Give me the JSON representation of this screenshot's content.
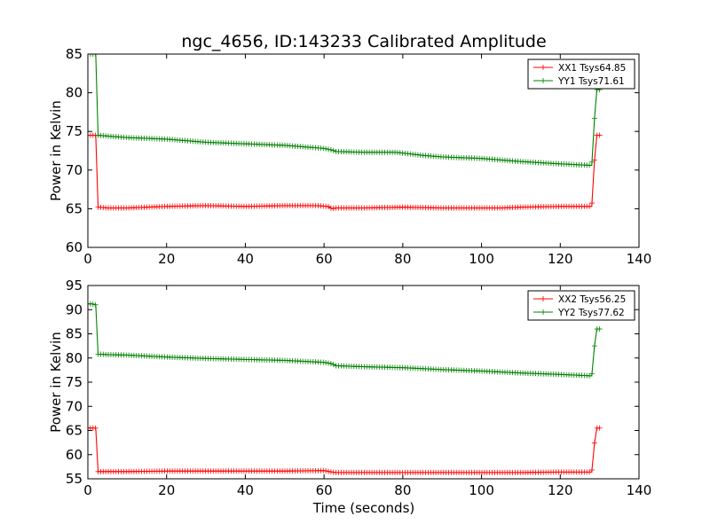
{
  "chart_data": {
    "type": "line",
    "title": "ngc_4656, ID:143233 Calibrated Amplitude",
    "xlabel": "Time (seconds)",
    "panels": [
      {
        "ylabel": "Power in Kelvin",
        "xlim": [
          0,
          140
        ],
        "ylim": [
          60,
          85
        ],
        "xticks": [
          0,
          20,
          40,
          60,
          80,
          100,
          120,
          140
        ],
        "yticks": [
          60,
          65,
          70,
          75,
          80,
          85
        ],
        "legend_position": "top-right",
        "series": [
          {
            "name": "XX1 Tsys64.85",
            "color": "#ff0000",
            "x": [
              0,
              1,
              2,
              2.6,
              5,
              10,
              20,
              30,
              40,
              50,
              58,
              61,
              62,
              63,
              70,
              80,
              90,
              100,
              105,
              110,
              120,
              128,
              128.7,
              129.3,
              130
            ],
            "y": [
              74.5,
              74.5,
              74.5,
              65.2,
              65.1,
              65.1,
              65.3,
              65.4,
              65.3,
              65.4,
              65.4,
              65.3,
              65.0,
              65.1,
              65.1,
              65.2,
              65.1,
              65.1,
              65.1,
              65.2,
              65.3,
              65.3,
              71.3,
              74.5,
              74.5
            ]
          },
          {
            "name": "YY1 Tsys71.61",
            "color": "#008000",
            "x": [
              0,
              1,
              2,
              2.6,
              5,
              10,
              20,
              30,
              40,
              50,
              55,
              60,
              62,
              63,
              70,
              78,
              80,
              85,
              90,
              100,
              110,
              120,
              128,
              128.7,
              129.3,
              130
            ],
            "y": [
              85,
              85,
              85,
              74.5,
              74.4,
              74.2,
              74.0,
              73.6,
              73.4,
              73.2,
              73.0,
              72.8,
              72.6,
              72.4,
              72.3,
              72.3,
              72.2,
              71.9,
              71.7,
              71.5,
              71.1,
              70.8,
              70.6,
              76.7,
              80.4,
              80.4
            ]
          }
        ]
      },
      {
        "ylabel": "Power in Kelvin",
        "xlim": [
          0,
          140
        ],
        "ylim": [
          55,
          95
        ],
        "xticks": [
          0,
          20,
          40,
          60,
          80,
          100,
          120,
          140
        ],
        "yticks": [
          55,
          60,
          65,
          70,
          75,
          80,
          85,
          90,
          95
        ],
        "legend_position": "top-right",
        "series": [
          {
            "name": "XX2 Tsys56.25",
            "color": "#ff0000",
            "x": [
              0,
              1,
              2,
              2.6,
              5,
              10,
              20,
              30,
              40,
              50,
              60,
              62,
              63,
              70,
              80,
              90,
              100,
              110,
              120,
              128,
              128.7,
              129.3,
              130
            ],
            "y": [
              65.5,
              65.5,
              65.5,
              56.5,
              56.5,
              56.5,
              56.6,
              56.6,
              56.6,
              56.6,
              56.7,
              56.4,
              56.3,
              56.3,
              56.3,
              56.3,
              56.3,
              56.3,
              56.4,
              56.4,
              62.4,
              65.5,
              65.5
            ]
          },
          {
            "name": "YY2 Tsys77.62",
            "color": "#008000",
            "x": [
              0,
              1,
              2,
              2.6,
              5,
              10,
              20,
              30,
              40,
              50,
              55,
              60,
              62,
              63,
              70,
              80,
              90,
              100,
              110,
              120,
              128,
              128.7,
              129.3,
              130
            ],
            "y": [
              91.2,
              91.2,
              91.0,
              80.8,
              80.7,
              80.6,
              80.2,
              79.9,
              79.7,
              79.5,
              79.3,
              79.1,
              78.8,
              78.4,
              78.2,
              78.0,
              77.6,
              77.3,
              76.9,
              76.6,
              76.3,
              82.5,
              86.0,
              86.0
            ]
          }
        ]
      }
    ]
  }
}
